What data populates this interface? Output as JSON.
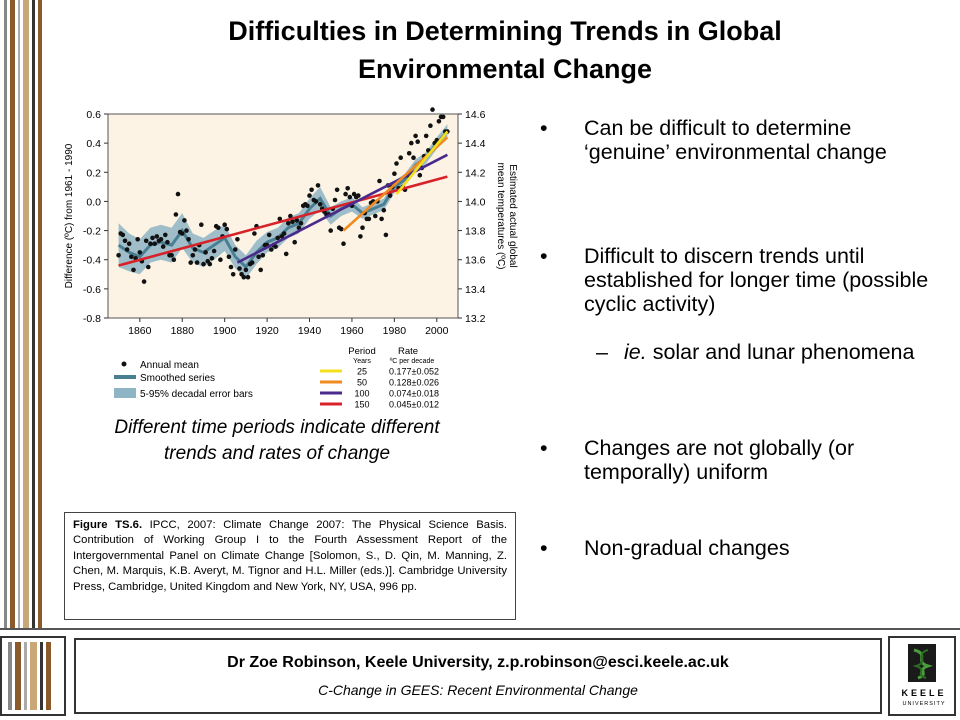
{
  "slide": {
    "title_line1": "Difficulties in Determining Trends in Global",
    "title_line2": "Environmental Change",
    "caption": "Different time periods indicate different trends and rates of change",
    "figure_ref_bold": "Figure TS.6.",
    "figure_ref_text": " IPCC, 2007: Climate Change 2007: The Physical Science Basis. Contribution of Working Group I to the Fourth Assessment Report of the Intergovernmental Panel on Climate Change [Solomon, S., D. Qin, M. Manning, Z. Chen, M. Marquis, K.B. Averyt, M. Tignor and H.L. Miller (eds.)]. Cambridge University Press, Cambridge, United Kingdom and New York, NY, USA, 996 pp.",
    "bullets": [
      {
        "bullet": "•",
        "text": "Can be difficult to determine ‘genuine’ environmental change"
      },
      {
        "bullet": "•",
        "text": "Difficult to discern trends until established for longer time (possible cyclic activity)"
      },
      {
        "bullet": "–",
        "text_italic": "ie.",
        "text": " solar and lunar phenomena"
      },
      {
        "bullet": "•",
        "text": "Changes are not globally (or temporally) uniform"
      },
      {
        "bullet": "•",
        "text": "Non-gradual changes"
      }
    ]
  },
  "footer": {
    "author": "Dr Zoe Robinson, Keele University, z.p.robinson@esci.keele.ac.uk",
    "course": "C-Change in GEES: Recent Environmental Change",
    "logo_text": "KEELE",
    "logo_sub": "UNIVERSITY"
  },
  "colors": {
    "smoothed": "#4a7f93",
    "errorband": "#8fb4c4",
    "trend25": "#f2e01c",
    "trend50": "#f08a1e",
    "trend100": "#4b2a8c",
    "trend150": "#d8222a",
    "stripe_brown": "#8b5a2b",
    "stripe_tan": "#c8a878",
    "stripe_gray": "#888888"
  },
  "chart_data": {
    "type": "scatter",
    "ylabel": "Difference (ºC) from 1961 - 1990",
    "ylabel_right": "Estimated actual global mean temperatures (ºC)",
    "xlim": [
      1845,
      2010
    ],
    "ylim": [
      -0.8,
      0.6
    ],
    "ylim_right": [
      13.2,
      14.6
    ],
    "x_ticks": [
      1860,
      1880,
      1900,
      1920,
      1940,
      1960,
      1980,
      2000
    ],
    "y_ticks": [
      "0.6",
      "0.4",
      "0.2",
      "0.0",
      "-0.2",
      "-0.4",
      "-0.6",
      "-0.8"
    ],
    "y_ticks_right": [
      "14.6",
      "14.4",
      "14.2",
      "14.0",
      "13.8",
      "13.6",
      "13.4",
      "13.2"
    ],
    "annual_mean": {
      "x": [
        1850,
        1851,
        1852,
        1853,
        1854,
        1855,
        1856,
        1857,
        1858,
        1859,
        1860,
        1861,
        1862,
        1863,
        1864,
        1865,
        1866,
        1867,
        1868,
        1869,
        1870,
        1871,
        1872,
        1873,
        1874,
        1875,
        1876,
        1877,
        1878,
        1879,
        1880,
        1881,
        1882,
        1883,
        1884,
        1885,
        1886,
        1887,
        1888,
        1889,
        1890,
        1891,
        1892,
        1893,
        1894,
        1895,
        1896,
        1897,
        1898,
        1899,
        1900,
        1901,
        1902,
        1903,
        1904,
        1905,
        1906,
        1907,
        1908,
        1909,
        1910,
        1911,
        1912,
        1913,
        1914,
        1915,
        1916,
        1917,
        1918,
        1919,
        1920,
        1921,
        1922,
        1923,
        1924,
        1925,
        1926,
        1927,
        1928,
        1929,
        1930,
        1931,
        1932,
        1933,
        1934,
        1935,
        1936,
        1937,
        1938,
        1939,
        1940,
        1941,
        1942,
        1943,
        1944,
        1945,
        1946,
        1947,
        1948,
        1949,
        1950,
        1951,
        1952,
        1953,
        1954,
        1955,
        1956,
        1957,
        1958,
        1959,
        1960,
        1961,
        1962,
        1963,
        1964,
        1965,
        1966,
        1967,
        1968,
        1969,
        1970,
        1971,
        1972,
        1973,
        1974,
        1975,
        1976,
        1977,
        1978,
        1979,
        1980,
        1981,
        1982,
        1983,
        1984,
        1985,
        1986,
        1987,
        1988,
        1989,
        1990,
        1991,
        1992,
        1993,
        1994,
        1995,
        1996,
        1997,
        1998,
        1999,
        2000,
        2001,
        2002,
        2003,
        2004,
        2005
      ],
      "y": [
        -0.37,
        -0.22,
        -0.23,
        -0.27,
        -0.33,
        -0.29,
        -0.38,
        -0.47,
        -0.39,
        -0.26,
        -0.35,
        -0.41,
        -0.55,
        -0.27,
        -0.45,
        -0.29,
        -0.25,
        -0.29,
        -0.24,
        -0.27,
        -0.26,
        -0.31,
        -0.23,
        -0.28,
        -0.37,
        -0.37,
        -0.4,
        -0.09,
        0.05,
        -0.21,
        -0.22,
        -0.13,
        -0.2,
        -0.26,
        -0.42,
        -0.37,
        -0.33,
        -0.42,
        -0.3,
        -0.16,
        -0.43,
        -0.35,
        -0.41,
        -0.43,
        -0.39,
        -0.34,
        -0.17,
        -0.18,
        -0.4,
        -0.24,
        -0.16,
        -0.19,
        -0.38,
        -0.45,
        -0.5,
        -0.33,
        -0.26,
        -0.46,
        -0.5,
        -0.52,
        -0.47,
        -0.52,
        -0.43,
        -0.42,
        -0.22,
        -0.17,
        -0.38,
        -0.47,
        -0.37,
        -0.3,
        -0.3,
        -0.23,
        -0.33,
        -0.3,
        -0.31,
        -0.25,
        -0.12,
        -0.24,
        -0.22,
        -0.36,
        -0.15,
        -0.1,
        -0.14,
        -0.28,
        -0.13,
        -0.18,
        -0.15,
        -0.03,
        -0.02,
        -0.03,
        0.04,
        0.08,
        0.01,
        0.0,
        0.11,
        -0.02,
        -0.05,
        -0.07,
        -0.09,
        -0.09,
        -0.2,
        -0.05,
        0.01,
        0.08,
        -0.18,
        -0.19,
        -0.29,
        0.05,
        0.09,
        0.03,
        -0.03,
        0.05,
        0.03,
        0.04,
        -0.24,
        -0.18,
        -0.08,
        -0.12,
        -0.12,
        -0.01,
        0.0,
        -0.1,
        0.0,
        0.14,
        -0.12,
        -0.06,
        -0.23,
        0.11,
        0.04,
        0.1,
        0.19,
        0.26,
        0.09,
        0.3,
        0.1,
        0.08,
        0.18,
        0.33,
        0.4,
        0.3,
        0.45,
        0.41,
        0.18,
        0.23,
        0.31,
        0.45,
        0.35,
        0.52,
        0.63,
        0.4,
        0.42,
        0.55,
        0.58,
        0.58,
        0.48,
        0.48
      ]
    },
    "smoothed_series": {
      "x": [
        1850,
        1855,
        1860,
        1865,
        1870,
        1875,
        1880,
        1885,
        1890,
        1895,
        1900,
        1905,
        1910,
        1915,
        1920,
        1925,
        1930,
        1935,
        1940,
        1945,
        1950,
        1955,
        1960,
        1965,
        1970,
        1975,
        1980,
        1985,
        1990,
        1995,
        2000,
        2005
      ],
      "y": [
        -0.3,
        -0.35,
        -0.38,
        -0.3,
        -0.28,
        -0.3,
        -0.2,
        -0.32,
        -0.35,
        -0.3,
        -0.25,
        -0.38,
        -0.45,
        -0.35,
        -0.28,
        -0.25,
        -0.18,
        -0.15,
        -0.05,
        0.02,
        -0.1,
        -0.05,
        -0.02,
        -0.08,
        -0.05,
        -0.02,
        0.1,
        0.15,
        0.25,
        0.3,
        0.4,
        0.48
      ],
      "err_low": [
        -0.45,
        -0.48,
        -0.5,
        -0.42,
        -0.4,
        -0.42,
        -0.32,
        -0.42,
        -0.45,
        -0.4,
        -0.34,
        -0.46,
        -0.53,
        -0.43,
        -0.35,
        -0.32,
        -0.25,
        -0.22,
        -0.12,
        -0.06,
        -0.16,
        -0.1,
        -0.07,
        -0.12,
        -0.09,
        -0.06,
        0.06,
        0.11,
        0.21,
        0.26,
        0.36,
        0.43
      ],
      "err_high": [
        -0.15,
        -0.22,
        -0.26,
        -0.18,
        -0.16,
        -0.18,
        -0.08,
        -0.22,
        -0.25,
        -0.2,
        -0.16,
        -0.3,
        -0.37,
        -0.27,
        -0.21,
        -0.18,
        -0.11,
        -0.08,
        0.02,
        0.1,
        -0.04,
        0.0,
        0.03,
        -0.04,
        -0.01,
        0.02,
        0.14,
        0.19,
        0.29,
        0.34,
        0.44,
        0.53
      ]
    },
    "trend_lines": [
      {
        "period": "25",
        "rate": "0.177±0.052",
        "x": [
          1981,
          2005
        ],
        "y": [
          0.05,
          0.48
        ]
      },
      {
        "period": "50",
        "rate": "0.128±0.026",
        "x": [
          1956,
          2005
        ],
        "y": [
          -0.2,
          0.44
        ]
      },
      {
        "period": "100",
        "rate": "0.074±0.018",
        "x": [
          1906,
          2005
        ],
        "y": [
          -0.42,
          0.32
        ]
      },
      {
        "period": "150",
        "rate": "0.045±0.012",
        "x": [
          1850,
          2005
        ],
        "y": [
          -0.44,
          0.17
        ]
      }
    ],
    "legend": {
      "annual": "Annual mean",
      "smoothed": "Smoothed series",
      "error": "5-95% decadal error bars",
      "period_header": "Period",
      "period_units": "Years",
      "rate_header": "Rate",
      "rate_units": "ºC  per decade"
    }
  }
}
